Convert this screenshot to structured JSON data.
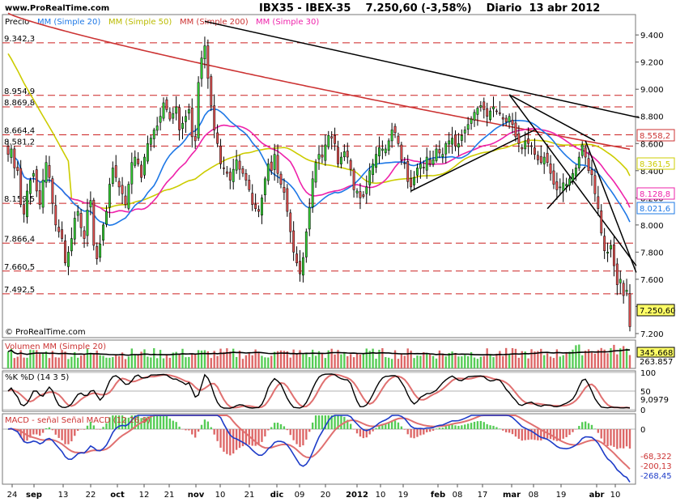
{
  "header": {
    "brand": "www.ProRealTime.com",
    "title": "IBX35 - IBEX-35    7.250,60 (-3,58%)    Diario  13 abr 2012"
  },
  "chart_data": [
    {
      "type": "candlestick",
      "panel": "price",
      "legend": {
        "price": "Precio",
        "ma20": "MM (Simple 20)",
        "ma50": "MM (Simple 50)",
        "ma200": "MM (Simple 200)",
        "ma30": "MM (Simple 30)"
      },
      "ylim": [
        7170,
        9550
      ],
      "y_ticks": [
        7200,
        7400,
        7600,
        7800,
        8000,
        8200,
        8400,
        8600,
        8800,
        9000,
        9200,
        9400
      ],
      "y_tick_labels": [
        "7.200",
        "7.400",
        "7.600",
        "7.800",
        "8.000",
        "8.200",
        "8.400",
        "8.600",
        "8.800",
        "9.000",
        "9.200",
        "9.400"
      ],
      "x_labels": [
        "24",
        "sep",
        "13",
        "22",
        "oct",
        "12",
        "21",
        "nov",
        "10",
        "21",
        "dic",
        "09",
        "20",
        "2012",
        "10",
        "19",
        "feb",
        "08",
        "17",
        "mar",
        "08",
        "19",
        "abr",
        "10"
      ],
      "support_resistance_levels": [
        {
          "value": 9342.3,
          "label": "9.342,3"
        },
        {
          "value": 8954.9,
          "label": "8.954,9"
        },
        {
          "value": 8869.8,
          "label": "8.869,8"
        },
        {
          "value": 8664.4,
          "label": "8.664,4"
        },
        {
          "value": 8581.2,
          "label": "8.581,2"
        },
        {
          "value": 8159.5,
          "label": "8.159,5"
        },
        {
          "value": 7866.4,
          "label": "7.866,4"
        },
        {
          "value": 7660.5,
          "label": "7.660,5"
        },
        {
          "value": 7492.5,
          "label": "7.492,5"
        }
      ],
      "last_values": [
        {
          "name": "MM (Simple 200)",
          "value": "8.558,2",
          "color": "#cc3333"
        },
        {
          "name": "MM (Simple 50)",
          "value": "8.361,5",
          "color": "#cccc00"
        },
        {
          "name": "MM (Simple 30)",
          "value": "8.128,8",
          "color": "#ee22aa"
        },
        {
          "name": "MM (Simple 20)",
          "value": "8.021,6",
          "color": "#1e78e6"
        },
        {
          "name": "Precio",
          "value": "7.250,60",
          "color": "#000000"
        }
      ],
      "close": [
        8520,
        8560,
        8420,
        8400,
        8150,
        8080,
        8250,
        8330,
        8380,
        8250,
        8150,
        8330,
        8460,
        8350,
        8160,
        8000,
        7950,
        7900,
        7720,
        7800,
        7900,
        8050,
        8100,
        7980,
        7900,
        8110,
        8180,
        7850,
        7750,
        7860,
        8000,
        8100,
        8300,
        8420,
        8350,
        8280,
        8230,
        8150,
        8300,
        8460,
        8500,
        8450,
        8350,
        8500,
        8600,
        8640,
        8700,
        8730,
        8800,
        8900,
        8850,
        8780,
        8820,
        8870,
        8700,
        8750,
        8800,
        8850,
        8650,
        8620,
        9050,
        9230,
        9320,
        9080,
        8880,
        8700,
        8600,
        8450,
        8420,
        8380,
        8330,
        8410,
        8480,
        8410,
        8380,
        8330,
        8260,
        8150,
        8120,
        8100,
        8200,
        8340,
        8450,
        8400,
        8520,
        8380,
        8300,
        8240,
        8100,
        7950,
        7800,
        7720,
        7640,
        7760,
        7950,
        8130,
        8340,
        8460,
        8520,
        8500,
        8590,
        8660,
        8640,
        8600,
        8450,
        8500,
        8540,
        8500,
        8410,
        8260,
        8250,
        8200,
        8210,
        8280,
        8400,
        8450,
        8520,
        8570,
        8560,
        8560,
        8620,
        8700,
        8680,
        8600,
        8480,
        8450,
        8320,
        8280,
        8350,
        8420,
        8450,
        8420,
        8500,
        8450,
        8480,
        8560,
        8530,
        8520,
        8600,
        8620,
        8640,
        8580,
        8600,
        8660,
        8700,
        8740,
        8780,
        8830,
        8860,
        8880,
        8850,
        8800,
        8840,
        8870,
        8840,
        8820,
        8780,
        8760,
        8800,
        8740,
        8650,
        8600,
        8560,
        8620,
        8600,
        8580,
        8520,
        8480,
        8460,
        8500,
        8460,
        8380,
        8300,
        8260,
        8280,
        8310,
        8300,
        8340,
        8380,
        8420,
        8500,
        8590,
        8500,
        8400,
        8370,
        8230,
        8120,
        7940,
        7810,
        7800,
        7850,
        7700,
        7560,
        7600,
        7480,
        7520,
        7250.6
      ],
      "ma20_last": 8021.6,
      "ma30_last": 8128.8,
      "ma50_last": 8361.5,
      "ma200_last": 8558.2,
      "copyright": "© ProRealTime.com"
    },
    {
      "type": "bar",
      "panel": "volume",
      "legend": "Volumen MM (Simple 20)",
      "last_values": [
        {
          "name": "Volumen",
          "value": "345.668",
          "color": "#cc3333"
        },
        {
          "name": "MM (Simple 20)",
          "value": "263.857",
          "color": "#000000"
        }
      ],
      "ylim": [
        0,
        430000
      ]
    },
    {
      "type": "line",
      "panel": "stochastic",
      "legend": "%K %D (14 3 5)",
      "y_tick_labels": [
        "100",
        "50",
        "0"
      ],
      "ylim": [
        0,
        100
      ],
      "last_values": [
        {
          "name": "%K",
          "value": "9,0979",
          "color": "#000000"
        }
      ]
    },
    {
      "type": "line",
      "panel": "macd",
      "legend": "MACD - señal Señal MACD (12 26 9)",
      "y_tick_labels": [
        "0"
      ],
      "last_values": [
        {
          "name": "Histograma",
          "value": "-68,322",
          "color": "#cc3333"
        },
        {
          "name": "Señal MACD",
          "value": "-200,13",
          "color": "#cc3333"
        },
        {
          "name": "MACD",
          "value": "-268,45",
          "color": "#1e3cc8"
        }
      ]
    }
  ]
}
